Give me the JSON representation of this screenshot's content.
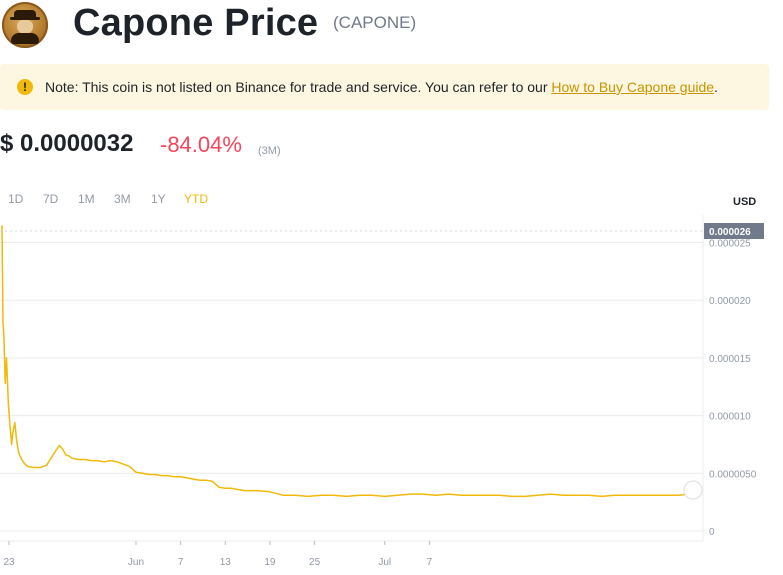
{
  "header": {
    "title": "Capone Price",
    "symbol": "(CAPONE)",
    "logo_icon": "capone-coin-logo"
  },
  "note": {
    "icon": "warning-icon",
    "text": "Note: This coin is not listed on Binance for trade and service. You can refer to our ",
    "link_text": "How to Buy Capone guide",
    "suffix": "."
  },
  "price": {
    "value": "$ 0.0000032",
    "change": "-84.04%",
    "period": "(3M)"
  },
  "ranges": [
    {
      "label": "1D",
      "active": false
    },
    {
      "label": "7D",
      "active": false
    },
    {
      "label": "1M",
      "active": false
    },
    {
      "label": "3M",
      "active": false
    },
    {
      "label": "1Y",
      "active": false
    },
    {
      "label": "YTD",
      "active": true
    }
  ],
  "currency_label": "USD",
  "colors": {
    "line": "#f0b90b",
    "negative": "#f6465d",
    "accent": "#f0b90b",
    "current_label_bg": "#707a8a"
  },
  "chart_data": {
    "type": "line",
    "current_value_label": "0.000026",
    "x_tick_labels": [
      "23",
      "Jun",
      "7",
      "13",
      "19",
      "25",
      "Jul",
      "7"
    ],
    "y_tick_labels": [
      "0.000025",
      "0.000020",
      "0.000015",
      "0.000010",
      "0.0000050",
      "0"
    ],
    "y_ticks": [
      2.5e-05,
      2e-05,
      1.5e-05,
      1e-05,
      5e-06,
      0
    ],
    "ylim": [
      0,
      2.6e-05
    ],
    "grid": true,
    "series": [
      {
        "x_days": [
          0,
          0.15,
          0.3,
          0.5,
          0.7,
          1,
          1.2,
          1.5,
          1.7,
          2,
          2.3,
          2.6,
          3,
          3.3,
          3.6,
          4,
          5,
          6,
          7,
          8,
          9,
          9.5,
          10,
          10.5,
          11,
          12,
          13,
          14,
          15,
          16,
          17,
          18,
          19,
          20,
          21,
          22,
          23,
          24,
          25,
          26,
          27,
          28,
          29,
          30,
          31,
          32,
          33,
          34,
          35,
          36,
          37,
          38,
          40,
          42,
          44,
          46,
          48,
          50,
          52,
          54,
          56,
          58,
          60,
          62,
          64,
          66,
          68,
          70,
          72,
          74,
          76,
          78,
          80,
          82,
          84,
          86,
          88,
          90,
          92,
          94,
          96,
          98,
          100,
          102,
          104,
          106,
          108
        ],
        "values": [
          2.65e-05,
          1.8e-05,
          1.7e-05,
          1.28e-05,
          1.5e-05,
          1.1e-05,
          9.5e-06,
          7.5e-06,
          8.5e-06,
          9.4e-06,
          7.8e-06,
          6.8e-06,
          6.3e-06,
          6e-06,
          5.8e-06,
          5.6e-06,
          5.5e-06,
          5.5e-06,
          5.7e-06,
          6.6e-06,
          7.4e-06,
          7.1e-06,
          6.6e-06,
          6.5e-06,
          6.3e-06,
          6.2e-06,
          6.2e-06,
          6.1e-06,
          6.1e-06,
          6e-06,
          6.1e-06,
          6e-06,
          5.8e-06,
          5.6e-06,
          5.1e-06,
          5e-06,
          4.9e-06,
          4.9e-06,
          4.8e-06,
          4.8e-06,
          4.7e-06,
          4.7e-06,
          4.6e-06,
          4.5e-06,
          4.4e-06,
          4.4e-06,
          4.3e-06,
          3.8e-06,
          3.7e-06,
          3.7e-06,
          3.6e-06,
          3.5e-06,
          3.5e-06,
          3.4e-06,
          3.1e-06,
          3.1e-06,
          3e-06,
          3.1e-06,
          3.1e-06,
          3e-06,
          3.1e-06,
          3.1e-06,
          3e-06,
          3.1e-06,
          3.2e-06,
          3.2e-06,
          3.1e-06,
          3.2e-06,
          3.1e-06,
          3.1e-06,
          3.1e-06,
          3.1e-06,
          3e-06,
          3e-06,
          3.1e-06,
          3.2e-06,
          3.1e-06,
          3.1e-06,
          3.1e-06,
          3e-06,
          3.1e-06,
          3.1e-06,
          3.1e-06,
          3.1e-06,
          3.1e-06,
          3.1e-06,
          3.2e-06
        ]
      }
    ]
  }
}
